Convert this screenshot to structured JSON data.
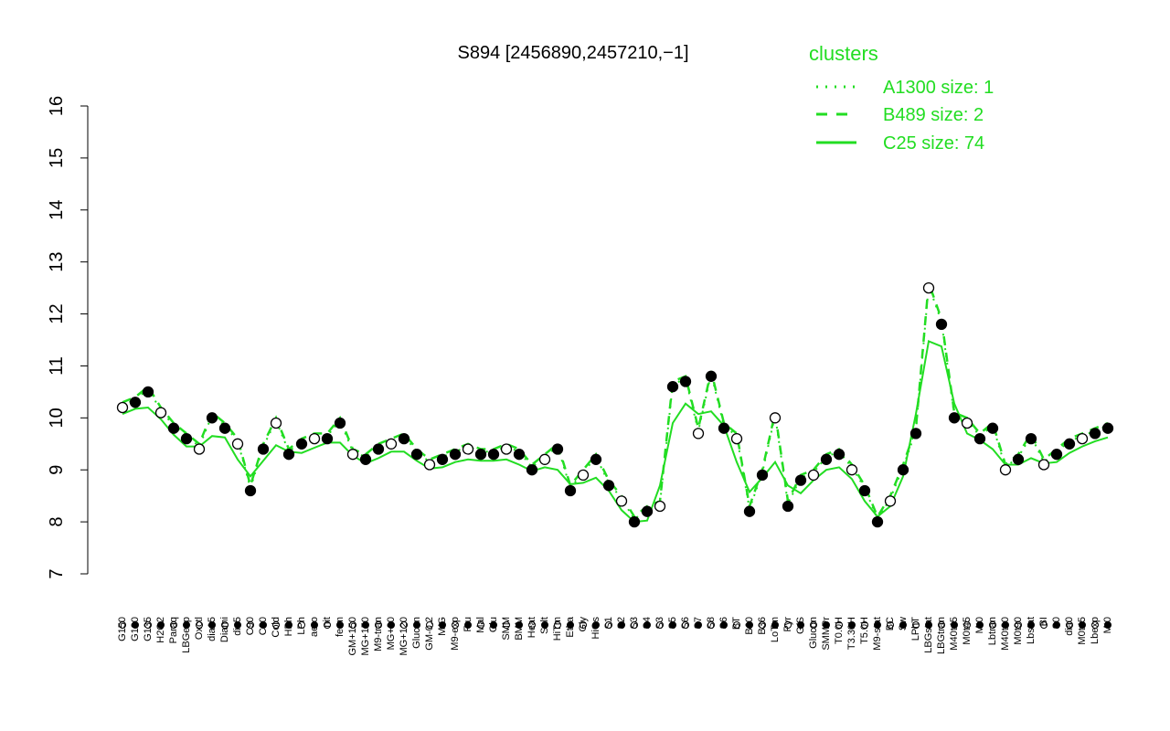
{
  "chart_data": {
    "type": "line",
    "title": "S894 [2456890,2457210,−1]",
    "ylim": [
      7,
      16
    ],
    "yticks": [
      7,
      8,
      9,
      10,
      11,
      12,
      13,
      14,
      15,
      16
    ],
    "legend": {
      "title": "clusters",
      "position": "top-right",
      "entries": [
        {
          "label": "A1300 size: 1",
          "style": "dotted"
        },
        {
          "label": "B489 size: 2",
          "style": "dashed"
        },
        {
          "label": "C25 size: 74",
          "style": "solid"
        }
      ],
      "color": "#22dd22"
    },
    "x_labels": [
      "G150",
      "G180",
      "G135",
      "H2O2",
      "Paraq",
      "LBGexp",
      "Oxctl",
      "dia15",
      "Diami",
      "dia5",
      "C90",
      "C30",
      "Cold",
      "HPh",
      "LPh",
      "aero",
      "nit",
      "ferm",
      "GM+150",
      "MG+150",
      "M9-tran",
      "MG+90",
      "MG+120",
      "Glucon",
      "GM-0.2",
      "M/G",
      "M9-exp",
      "Fru",
      "Mal",
      "Glu",
      "SMM",
      "BMM",
      "Heat",
      "Salt",
      "HiTm",
      "Etha",
      "Gly",
      "HiOs",
      "S1",
      "S2",
      "S3",
      "S4",
      "S3",
      "S5",
      "S6",
      "S7",
      "S8",
      "S6",
      "BT",
      "B60",
      "B36",
      "LoTm",
      "Pyr",
      "G/S",
      "Glucon",
      "SMMPr",
      "T0.0H",
      "T3.30H",
      "T5.0H",
      "M9-stat",
      "BC",
      "Sw",
      "LPhT",
      "LBGstat",
      "LBGtran",
      "M40t45",
      "M0t45",
      "Mt0",
      "Lbtran",
      "M40t90",
      "M0t90",
      "Lbstat",
      "BI",
      "S0",
      "dia0",
      "M0t45",
      "Lbexp",
      "Mt0"
    ],
    "x": [
      1,
      2,
      3,
      4,
      5,
      6,
      7,
      8,
      9,
      10,
      11,
      12,
      13,
      14,
      15,
      16,
      17,
      18,
      19,
      20,
      21,
      22,
      23,
      24,
      25,
      26,
      27,
      28,
      29,
      30,
      31,
      32,
      33,
      34,
      35,
      36,
      37,
      38,
      39,
      40,
      41,
      42,
      43,
      44,
      45,
      46,
      47,
      48,
      49,
      50,
      51,
      52,
      53,
      54,
      55,
      56,
      57,
      58,
      59,
      60,
      61,
      62,
      63,
      64,
      65,
      66,
      67,
      68,
      69,
      70,
      71,
      72,
      73,
      74,
      75,
      76,
      77,
      78
    ],
    "series": [
      {
        "values": [
          10.2,
          10.3,
          10.5,
          10.1,
          9.8,
          9.6,
          9.4,
          10.0,
          9.8,
          9.5,
          8.6,
          9.4,
          9.9,
          9.3,
          9.5,
          9.6,
          9.6,
          9.9,
          9.3,
          9.2,
          9.4,
          9.5,
          9.6,
          9.3,
          9.1,
          9.2,
          9.3,
          9.4,
          9.3,
          9.3,
          9.4,
          9.3,
          9.0,
          9.2,
          9.4,
          8.6,
          8.9,
          9.2,
          8.7,
          8.4,
          8.0,
          8.2,
          8.3,
          10.6,
          10.7,
          9.7,
          10.8,
          9.8,
          9.6,
          8.2,
          8.9,
          10.0,
          8.3,
          8.8,
          8.9,
          9.2,
          9.3,
          9.0,
          8.6,
          8.0,
          8.4,
          9.0,
          9.7,
          12.5,
          11.8,
          10.0,
          9.9,
          9.6,
          9.8,
          9.0,
          9.2,
          9.6,
          9.1,
          9.3,
          9.5,
          9.6,
          9.7,
          9.8
        ]
      }
    ]
  }
}
